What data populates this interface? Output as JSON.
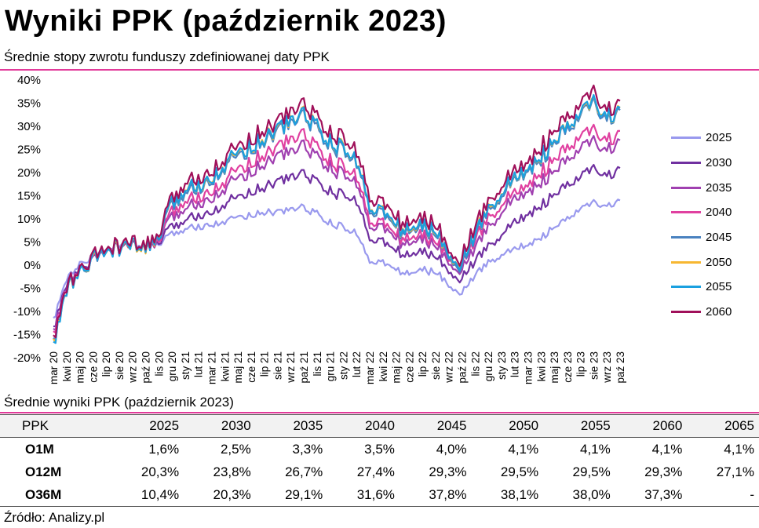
{
  "title": "Wyniki PPK (październik 2023)",
  "subtitle": "Średnie stopy zwrotu funduszy zdefiniowanej daty PPK",
  "chart_data": {
    "type": "line",
    "title": "Średnie stopy zwrotu funduszy zdefiniowanej daty PPK",
    "ylim": [
      -20,
      40
    ],
    "yticks": [
      "40%",
      "35%",
      "30%",
      "25%",
      "20%",
      "15%",
      "10%",
      "5%",
      "0%",
      "-5%",
      "-10%",
      "-15%",
      "-20%"
    ],
    "x_tick_labels": [
      "mar 20",
      "kwi 20",
      "maj 20",
      "cze 20",
      "lip 20",
      "sie 20",
      "wrz 20",
      "paź 20",
      "lis 20",
      "gru 20",
      "sty 21",
      "lut 21",
      "mar 21",
      "kwi 21",
      "maj 21",
      "cze 21",
      "lip 21",
      "sie 21",
      "wrz 21",
      "paź 21",
      "lis 21",
      "gru 21",
      "sty 22",
      "lut 22",
      "mar 22",
      "kwi 22",
      "maj 22",
      "cze 22",
      "lip 22",
      "sie 22",
      "wrz 22",
      "paź 22",
      "lis 22",
      "gru 22",
      "sty 23",
      "lut 23",
      "mar 23",
      "kwi 23",
      "maj 23",
      "cze 23",
      "lip 23",
      "sie 23",
      "wrz 23",
      "paź 23"
    ],
    "anchor_months": [
      "mar 20",
      "kwi 20",
      "maj 20",
      "cze 20",
      "lip 20",
      "sie 20",
      "wrz 20",
      "paź 20",
      "lis 20",
      "gru 20",
      "sty 21",
      "lut 21",
      "mar 21",
      "kwi 21",
      "maj 21",
      "cze 21",
      "lip 21",
      "sie 21",
      "wrz 21",
      "paź 21",
      "lis 21",
      "gru 21",
      "sty 22",
      "lut 22",
      "mar 22",
      "kwi 22",
      "maj 22",
      "cze 22",
      "lip 22",
      "sie 22",
      "wrz 22",
      "paź 22",
      "lis 22",
      "gru 22",
      "sty 23",
      "lut 23",
      "mar 23",
      "kwi 23",
      "maj 23",
      "cze 23",
      "lip 23",
      "sie 23",
      "wrz 23",
      "paź 23"
    ],
    "series": [
      {
        "name": "2025",
        "color": "#9999ee",
        "values": [
          -12.0,
          -3.0,
          0.0,
          2.0,
          3.5,
          4.5,
          4.5,
          4.0,
          4.5,
          6.5,
          8.0,
          8.5,
          9.0,
          9.5,
          10.5,
          11.0,
          11.5,
          11.5,
          12.0,
          12.5,
          11.0,
          9.0,
          8.0,
          7.0,
          1.0,
          0.5,
          -1.0,
          -2.0,
          -1.0,
          -1.5,
          -4.0,
          -6.0,
          -2.0,
          0.5,
          2.5,
          3.5,
          4.5,
          6.0,
          8.0,
          10.0,
          12.0,
          13.5,
          12.5,
          14.0
        ]
      },
      {
        "name": "2030",
        "color": "#7030a0",
        "values": [
          -14.0,
          -4.0,
          -1.0,
          1.0,
          3.0,
          4.0,
          4.0,
          3.5,
          5.0,
          8.0,
          10.0,
          11.0,
          12.0,
          13.0,
          15.0,
          16.0,
          17.0,
          18.0,
          19.0,
          20.0,
          18.0,
          16.0,
          15.0,
          14.0,
          6.0,
          5.0,
          3.0,
          2.0,
          3.0,
          2.0,
          -1.0,
          -3.0,
          1.0,
          4.0,
          7.0,
          9.0,
          11.0,
          13.0,
          15.0,
          17.0,
          19.0,
          21.0,
          19.0,
          21.0
        ]
      },
      {
        "name": "2035",
        "color": "#a040b0",
        "values": [
          -15.0,
          -4.5,
          -1.5,
          1.0,
          3.0,
          4.0,
          4.0,
          3.5,
          5.5,
          10.0,
          12.5,
          13.5,
          15.0,
          16.5,
          19.0,
          20.5,
          22.0,
          23.5,
          24.5,
          26.0,
          23.5,
          21.0,
          19.5,
          18.0,
          9.0,
          8.0,
          5.5,
          4.5,
          5.5,
          4.5,
          1.0,
          -1.0,
          4.0,
          8.0,
          12.0,
          14.0,
          16.0,
          18.0,
          20.0,
          22.5,
          25.0,
          27.0,
          24.5,
          27.0
        ]
      },
      {
        "name": "2040",
        "color": "#e040a0",
        "values": [
          -15.5,
          -4.5,
          -1.5,
          1.0,
          3.0,
          4.0,
          4.0,
          3.5,
          5.5,
          11.0,
          14.0,
          15.0,
          16.5,
          18.0,
          21.0,
          22.5,
          24.0,
          25.5,
          27.0,
          28.5,
          25.5,
          22.5,
          21.0,
          19.5,
          10.0,
          9.0,
          6.5,
          5.5,
          6.5,
          5.5,
          2.0,
          0.0,
          5.5,
          10.0,
          13.5,
          15.5,
          17.5,
          20.0,
          22.5,
          25.0,
          27.5,
          29.5,
          26.5,
          29.0
        ]
      },
      {
        "name": "2045",
        "color": "#4a82c0",
        "values": [
          -17.0,
          -5.0,
          -2.0,
          1.0,
          3.0,
          4.0,
          4.0,
          3.5,
          6.0,
          12.5,
          16.0,
          17.0,
          19.0,
          21.0,
          24.0,
          25.5,
          27.0,
          29.0,
          30.5,
          32.5,
          29.5,
          26.0,
          24.5,
          22.5,
          12.5,
          11.0,
          8.0,
          7.0,
          8.0,
          7.0,
          2.5,
          0.0,
          6.5,
          11.5,
          15.5,
          18.0,
          20.5,
          23.0,
          26.0,
          29.0,
          32.0,
          35.0,
          31.0,
          33.5
        ]
      },
      {
        "name": "2050",
        "color": "#f7b731",
        "values": [
          -17.5,
          -5.0,
          -2.0,
          1.0,
          3.0,
          4.0,
          4.0,
          3.5,
          6.0,
          13.0,
          16.5,
          17.5,
          19.5,
          21.5,
          24.5,
          26.0,
          27.5,
          29.5,
          31.0,
          33.0,
          30.0,
          26.5,
          25.0,
          23.0,
          13.0,
          11.5,
          8.5,
          7.5,
          8.5,
          7.5,
          3.0,
          0.5,
          7.0,
          12.0,
          16.0,
          18.5,
          21.0,
          23.5,
          26.5,
          29.5,
          32.5,
          35.5,
          31.5,
          34.0
        ]
      },
      {
        "name": "2055",
        "color": "#1aa0e0",
        "values": [
          -18.0,
          -5.0,
          -2.0,
          1.0,
          3.0,
          4.0,
          4.0,
          3.5,
          6.0,
          13.0,
          16.5,
          17.5,
          19.5,
          21.5,
          24.5,
          26.0,
          27.5,
          29.5,
          31.0,
          33.0,
          30.0,
          26.5,
          25.0,
          23.0,
          13.0,
          11.5,
          8.5,
          7.5,
          8.5,
          7.5,
          3.0,
          0.5,
          7.0,
          12.0,
          16.0,
          18.5,
          21.0,
          23.5,
          26.5,
          29.5,
          32.5,
          35.5,
          31.5,
          34.0
        ]
      },
      {
        "name": "2060",
        "color": "#a0105a",
        "values": [
          -16.5,
          -4.5,
          -1.5,
          1.5,
          3.5,
          4.5,
          4.5,
          4.0,
          6.5,
          14.0,
          18.0,
          19.0,
          21.0,
          23.0,
          26.0,
          27.5,
          29.5,
          31.0,
          33.0,
          35.0,
          32.0,
          28.5,
          27.0,
          25.0,
          15.0,
          13.5,
          10.0,
          9.0,
          10.0,
          9.0,
          4.0,
          1.5,
          8.5,
          13.5,
          17.5,
          20.0,
          22.5,
          25.5,
          28.5,
          31.5,
          34.5,
          37.5,
          33.0,
          35.5
        ]
      }
    ]
  },
  "table": {
    "title": "Średnie wyniki PPK (październik 2023)",
    "headers": [
      "PPK",
      "2025",
      "2030",
      "2035",
      "2040",
      "2045",
      "2050",
      "2055",
      "2060",
      "2065"
    ],
    "rows": [
      {
        "label": "O1M",
        "values": [
          "1,6%",
          "2,5%",
          "3,3%",
          "3,5%",
          "4,0%",
          "4,1%",
          "4,1%",
          "4,1%",
          "4,1%"
        ]
      },
      {
        "label": "O12M",
        "values": [
          "20,3%",
          "23,8%",
          "26,7%",
          "27,4%",
          "29,3%",
          "29,5%",
          "29,5%",
          "29,3%",
          "27,1%"
        ]
      },
      {
        "label": "O36M",
        "values": [
          "10,4%",
          "20,3%",
          "29,1%",
          "31,6%",
          "37,8%",
          "38,1%",
          "38,0%",
          "37,3%",
          "-"
        ]
      }
    ]
  },
  "source": "Źródło: Analizy.pl"
}
